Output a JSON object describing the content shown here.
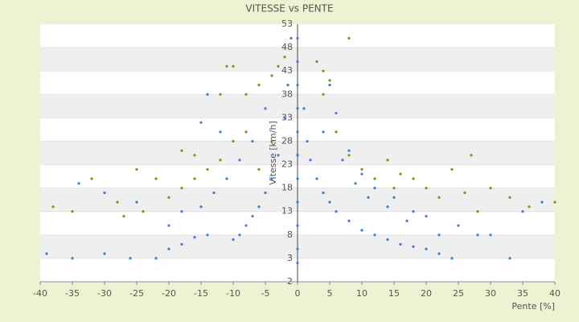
{
  "chart_data": {
    "type": "scatter",
    "title": "VITESSE vs PENTE",
    "xlabel": "Pente [%]",
    "ylabel": "Vitesse [km/h]",
    "xlim": [
      -40,
      40
    ],
    "xticks": [
      -40,
      -35,
      -30,
      -25,
      -20,
      -15,
      -10,
      -5,
      0,
      5,
      10,
      15,
      20,
      25,
      30,
      35,
      40
    ],
    "ylim": [
      -2,
      53
    ],
    "yticks": [
      -2,
      3,
      8,
      13,
      18,
      23,
      28,
      33,
      38,
      43,
      48,
      53
    ],
    "grid": true,
    "series": [
      {
        "color": "#3a7fd0",
        "x": [
          0,
          0,
          0,
          0,
          0,
          0,
          0,
          0,
          0,
          0,
          0,
          -1,
          -1.5,
          -2,
          -3,
          -4,
          -5,
          -6,
          -7,
          -8,
          -9,
          -10,
          1,
          1.5,
          2,
          3,
          4,
          5,
          6,
          8,
          10,
          12,
          14,
          16,
          18,
          20,
          22,
          24,
          -14,
          -16,
          -18,
          -20,
          -22,
          -26,
          -30,
          -35,
          -39,
          -5,
          -7,
          -9,
          -11,
          -13,
          -15,
          -18,
          -20,
          -25,
          -30,
          -34,
          -14,
          -15,
          -12,
          6,
          8,
          10,
          12,
          15,
          18,
          20,
          25,
          28,
          30,
          33,
          35,
          38,
          5,
          3,
          4,
          7,
          9,
          11,
          14,
          17,
          22
        ],
        "values": [
          2,
          5,
          10,
          15,
          20,
          25,
          30,
          35,
          40,
          45,
          50,
          50,
          40,
          33,
          25,
          20,
          17,
          14,
          12,
          10,
          8,
          7,
          35,
          28,
          24,
          20,
          17,
          15,
          13,
          11,
          9,
          8,
          7,
          6,
          5.5,
          5,
          4,
          3,
          8,
          7.5,
          6,
          5,
          3,
          3,
          4,
          3,
          4,
          35,
          28,
          24,
          20,
          17,
          14,
          13,
          10,
          15,
          17,
          19,
          38,
          32,
          30,
          34,
          26,
          21,
          18,
          16,
          13,
          12,
          10,
          8,
          8,
          3,
          13,
          15,
          40,
          45,
          30,
          24,
          19,
          16,
          14,
          11,
          8
        ]
      },
      {
        "color": "#8a8a1e",
        "x": [
          -2,
          -3,
          -4,
          -6,
          -8,
          -10,
          -11,
          -12,
          -8,
          -10,
          -12,
          -14,
          -16,
          -18,
          -22,
          -25,
          -28,
          -32,
          -35,
          -38,
          3,
          4,
          5,
          8,
          4,
          6,
          8,
          10,
          12,
          15,
          18,
          20,
          22,
          24,
          27,
          28,
          30,
          33,
          36,
          40,
          -20,
          -24,
          -27,
          -6,
          -4,
          -16,
          -18,
          14,
          16,
          26
        ],
        "values": [
          46,
          44,
          42,
          40,
          38,
          44,
          44,
          38,
          30,
          28,
          24,
          22,
          20,
          18,
          20,
          22,
          15,
          20,
          13,
          14,
          45,
          43,
          41,
          50,
          38,
          30,
          25,
          22,
          20,
          18,
          20,
          18,
          16,
          22,
          25,
          13,
          18,
          16,
          14,
          15,
          16,
          13,
          12,
          22,
          28,
          25,
          26,
          24,
          21,
          17
        ]
      }
    ]
  }
}
